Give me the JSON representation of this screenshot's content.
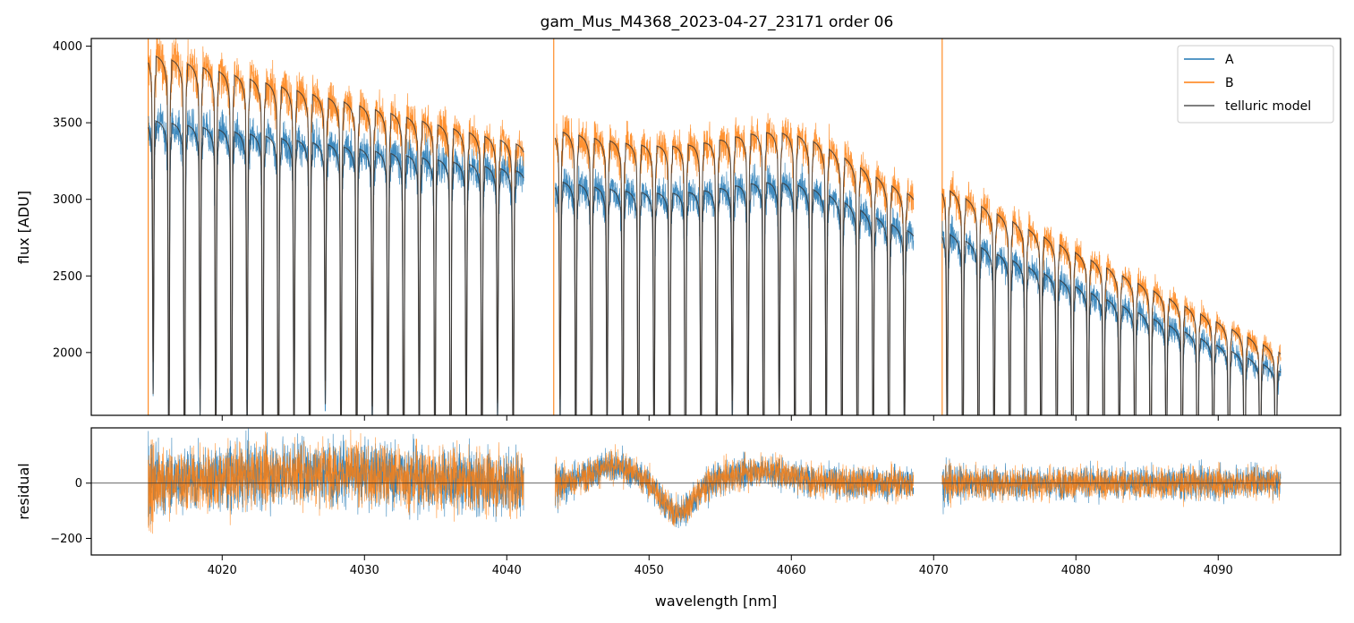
{
  "chart_data": [
    {
      "type": "line",
      "title": "gam_Mus_M4368_2023-04-27_23171  order 06",
      "xlabel": "",
      "ylabel": "flux [ADU]",
      "xlim": [
        4010.8,
        4098.6
      ],
      "ylim": [
        1590,
        4050
      ],
      "yticks": [
        2000,
        2500,
        3000,
        3500,
        4000
      ],
      "xticks": [
        4020,
        4030,
        4040,
        4050,
        4060,
        4070,
        4080,
        4090
      ],
      "show_xtick_labels": false,
      "grid": false,
      "legend": {
        "placement": "top-right",
        "entries": [
          "A",
          "B",
          "telluric model"
        ]
      },
      "segments": [
        {
          "x": [
            4014.8,
            4041.2
          ],
          "A_continuum": [
            3530,
            3190
          ],
          "B_continuum": [
            3960,
            3360
          ]
        },
        {
          "x": [
            4043.4,
            4068.6
          ],
          "A_continuum": [
            3130,
            2750
          ],
          "B_continuum": [
            3460,
            2980
          ],
          "bump_center": 4060,
          "A_bump": 230,
          "B_bump": 290
        },
        {
          "x": [
            4070.6,
            4094.4
          ],
          "A_continuum": [
            2800,
            1880
          ],
          "B_continuum": [
            3090,
            2000
          ]
        }
      ],
      "telluric_line_spacing": 1.1,
      "series": [
        {
          "name": "A",
          "color": "#1f77b4"
        },
        {
          "name": "B",
          "color": "#ff7f0e"
        },
        {
          "name": "telluric model",
          "color": "#555555"
        }
      ]
    },
    {
      "type": "line",
      "title": "",
      "xlabel": "wavelength [nm]",
      "ylabel": "residual",
      "xlim": [
        4010.8,
        4098.6
      ],
      "ylim": [
        -260,
        200
      ],
      "yticks": [
        -200,
        0
      ],
      "xticks": [
        4020,
        4030,
        4040,
        4050,
        4060,
        4070,
        4080,
        4090
      ],
      "show_xtick_labels": true,
      "grid": false,
      "zero_line": true,
      "series": [
        {
          "name": "A",
          "color": "#1f77b4"
        },
        {
          "name": "B",
          "color": "#ff7f0e"
        }
      ]
    }
  ]
}
